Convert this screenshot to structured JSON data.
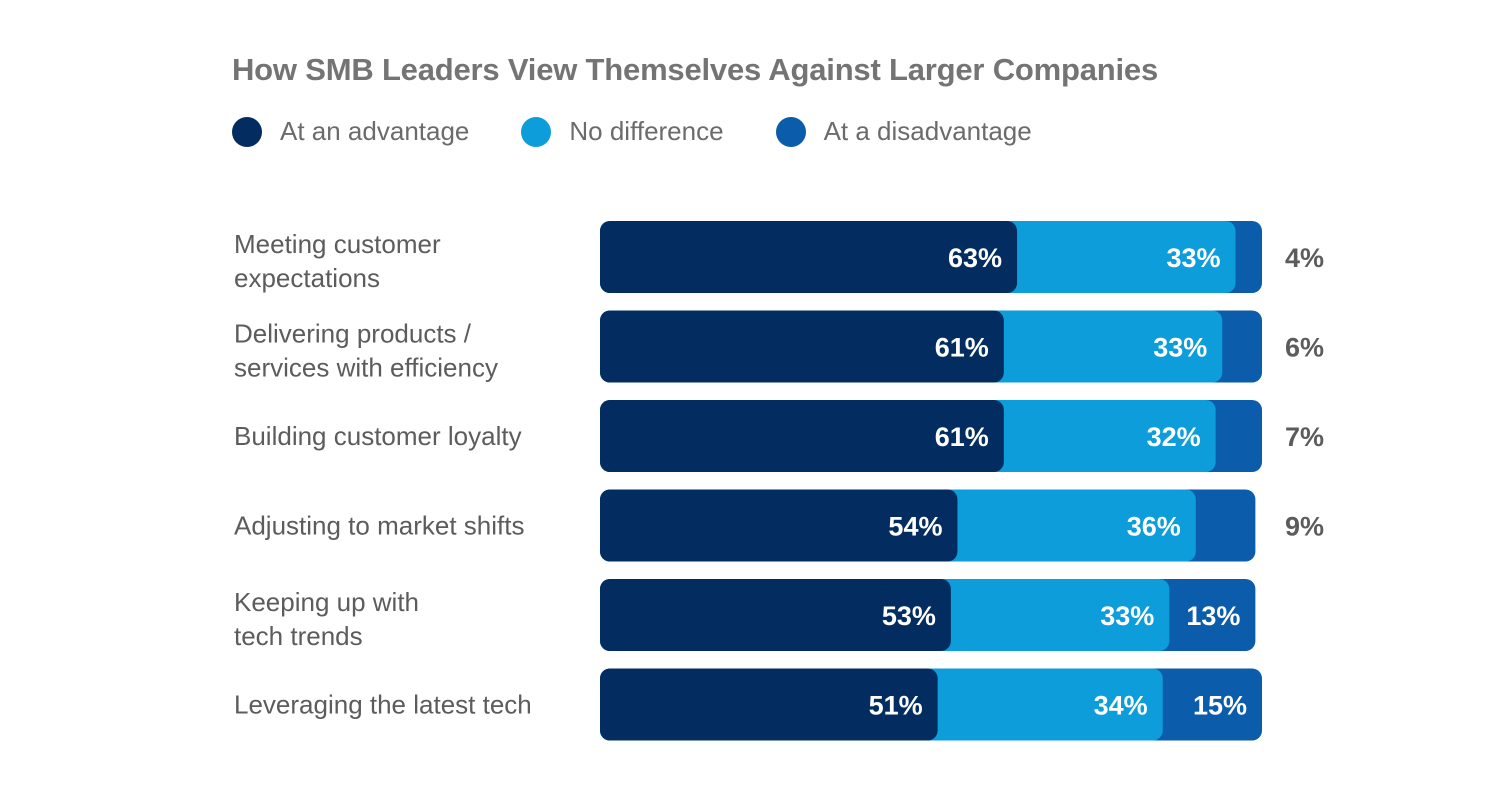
{
  "chart_data": {
    "type": "bar",
    "orientation": "horizontal",
    "stacked": true,
    "title": "How SMB Leaders View Themselves Against Larger Companies",
    "xlabel": "",
    "ylabel": "",
    "xlim": [
      0,
      100
    ],
    "grid": false,
    "legend_position": "top-left",
    "categories": [
      [
        "Meeting customer",
        "expectations"
      ],
      [
        "Delivering products /",
        "services with efficiency"
      ],
      [
        "Building customer loyalty"
      ],
      [
        "Adjusting to market shifts"
      ],
      [
        "Keeping up with",
        "tech trends"
      ],
      [
        "Leveraging the latest tech"
      ]
    ],
    "series": [
      {
        "name": "At an advantage",
        "color": "#032d60",
        "values": [
          63,
          61,
          61,
          54,
          53,
          51
        ]
      },
      {
        "name": "No difference",
        "color": "#0d9dda",
        "values": [
          33,
          33,
          32,
          36,
          33,
          34
        ]
      },
      {
        "name": "At a disadvantage",
        "color": "#0b5cab",
        "values": [
          4,
          6,
          7,
          9,
          13,
          15
        ]
      }
    ],
    "value_suffix": "%"
  }
}
